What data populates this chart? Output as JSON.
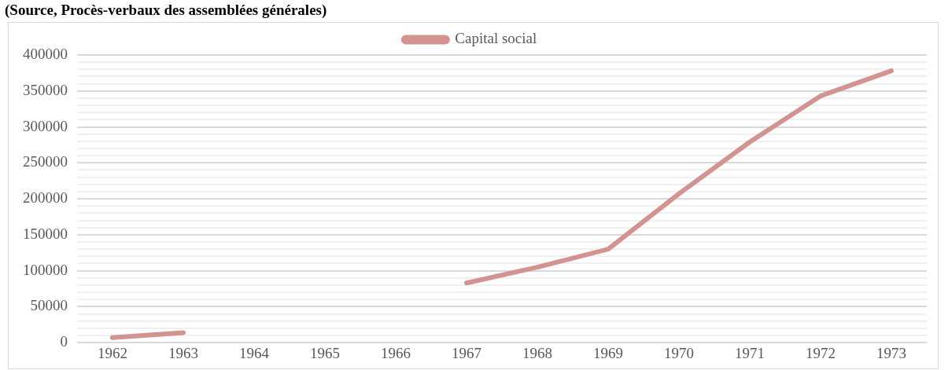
{
  "chart_data": {
    "type": "line",
    "title": "(Source, Procès-verbaux des assemblées générales)",
    "categories": [
      "1962",
      "1963",
      "1964",
      "1965",
      "1966",
      "1967",
      "1968",
      "1969",
      "1970",
      "1971",
      "1972",
      "1973"
    ],
    "series": [
      {
        "name": "Capital social",
        "color": "#d39391",
        "values": [
          7000,
          14000,
          null,
          null,
          null,
          83000,
          105000,
          130000,
          207000,
          279000,
          343000,
          378000
        ]
      }
    ],
    "ylim": [
      0,
      400000
    ],
    "yticks": [
      0,
      {
        "value": 10000,
        "label": null
      },
      {
        "value": 20000,
        "label": null
      },
      {
        "value": 30000,
        "label": null
      },
      {
        "value": 40000,
        "label": null
      },
      50000,
      {
        "value": 60000,
        "label": null
      },
      {
        "value": 70000,
        "label": null
      },
      {
        "value": 80000,
        "label": null
      },
      {
        "value": 90000,
        "label": null
      },
      100000,
      {
        "value": 110000,
        "label": null
      },
      {
        "value": 120000,
        "label": null
      },
      {
        "value": 130000,
        "label": null
      },
      {
        "value": 140000,
        "label": null
      },
      150000,
      {
        "value": 160000,
        "label": null
      },
      {
        "value": 170000,
        "label": null
      },
      {
        "value": 180000,
        "label": null
      },
      {
        "value": 190000,
        "label": null
      },
      200000,
      {
        "value": 210000,
        "label": null
      },
      {
        "value": 220000,
        "label": null
      },
      {
        "value": 230000,
        "label": null
      },
      {
        "value": 240000,
        "label": null
      },
      250000,
      {
        "value": 260000,
        "label": null
      },
      {
        "value": 270000,
        "label": null
      },
      {
        "value": 280000,
        "label": null
      },
      {
        "value": 290000,
        "label": null
      },
      300000,
      {
        "value": 310000,
        "label": null
      },
      {
        "value": 320000,
        "label": null
      },
      {
        "value": 330000,
        "label": null
      },
      {
        "value": 340000,
        "label": null
      },
      350000,
      {
        "value": 360000,
        "label": null
      },
      {
        "value": 370000,
        "label": null
      },
      {
        "value": 380000,
        "label": null
      },
      {
        "value": 390000,
        "label": null
      },
      400000
    ],
    "grid": "y",
    "legend": "top",
    "marker": "none",
    "line_style": "solid"
  }
}
